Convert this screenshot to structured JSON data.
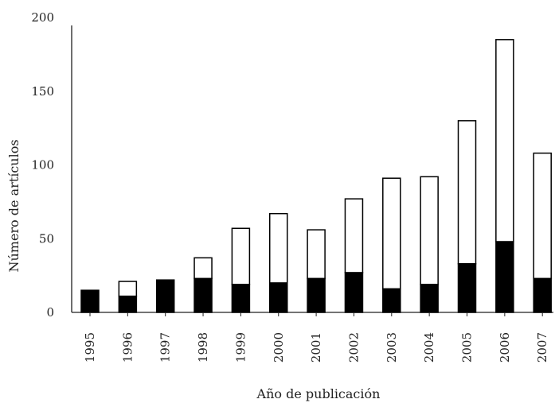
{
  "chart_data": {
    "type": "bar",
    "stacked": true,
    "categories": [
      "1995",
      "1996",
      "1997",
      "1998",
      "1999",
      "2000",
      "2001",
      "2002",
      "2003",
      "2004",
      "2005",
      "2006",
      "2007"
    ],
    "series": [
      {
        "values": [
          15,
          11,
          22,
          23,
          19,
          20,
          23,
          27,
          16,
          19,
          33,
          48,
          23
        ],
        "color": "#000000"
      },
      {
        "values": [
          0,
          10,
          0,
          14,
          38,
          47,
          33,
          50,
          75,
          73,
          97,
          137,
          85
        ],
        "color": "#ffffff"
      }
    ],
    "title": "",
    "xlabel": "Año de publicación",
    "ylabel": "Número de artículos",
    "ylim": [
      0,
      200
    ],
    "yticks": [
      0,
      50,
      100,
      150,
      200
    ],
    "grid": false,
    "legend": false
  }
}
